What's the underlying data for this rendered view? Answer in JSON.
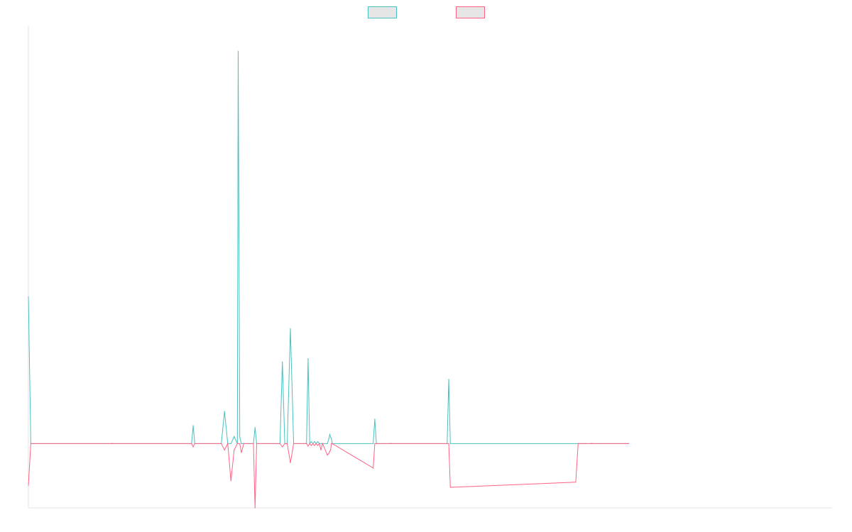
{
  "chart_data": {
    "type": "line",
    "title": "",
    "xlabel": "",
    "ylabel": "",
    "legend": {
      "placement": "top-center",
      "entries": [
        "",
        ""
      ]
    },
    "grid": false,
    "xlim": [
      0,
      1000
    ],
    "ylim": [
      -100,
      650
    ],
    "baseline": 0,
    "x": [
      0,
      3,
      103,
      104,
      105,
      203,
      205,
      207,
      240,
      244,
      248,
      252,
      256,
      260,
      261,
      263,
      265,
      268,
      280,
      282,
      284,
      313,
      316,
      319,
      322,
      326,
      330,
      346,
      348,
      350,
      352,
      354,
      356,
      358,
      360,
      362,
      364,
      366,
      372,
      374,
      375,
      376,
      377,
      378,
      429,
      431,
      433,
      435,
      450,
      451,
      452,
      521,
      523,
      525,
      681,
      684,
      687,
      690,
      693,
      700,
      701,
      702,
      743,
      745,
      747
    ],
    "series": [
      {
        "name": "",
        "color": "#4bc0c0",
        "values": [
          228,
          0,
          0,
          0,
          0,
          0,
          28,
          0,
          0,
          50,
          0,
          0,
          11,
          0,
          610,
          10,
          0,
          0,
          0,
          25,
          0,
          0,
          127,
          0,
          0,
          179,
          0,
          0,
          132,
          0,
          3,
          0,
          3,
          0,
          3,
          0,
          0,
          0,
          0,
          8,
          14,
          10,
          8,
          0,
          0,
          38,
          0,
          0,
          0,
          0,
          0,
          0,
          100,
          0,
          0,
          0,
          0,
          0,
          0,
          0,
          0,
          0,
          0,
          0,
          0
        ]
      },
      {
        "name": "",
        "color": "#ff6384",
        "values": [
          -65,
          0,
          0,
          0,
          0,
          0,
          -5,
          0,
          0,
          -10,
          0,
          -58,
          -10,
          0,
          0,
          0,
          -14,
          0,
          0,
          -100,
          0,
          0,
          -5,
          0,
          0,
          -30,
          0,
          0,
          -4,
          0,
          -3,
          0,
          -3,
          0,
          -3,
          0,
          -10,
          0,
          -18,
          -15,
          -12,
          -10,
          0,
          0,
          -38,
          0,
          0,
          0,
          0,
          0,
          0,
          0,
          0,
          -68,
          -60,
          0,
          0,
          0,
          0,
          0,
          0,
          0,
          0,
          0,
          0
        ]
      }
    ]
  }
}
